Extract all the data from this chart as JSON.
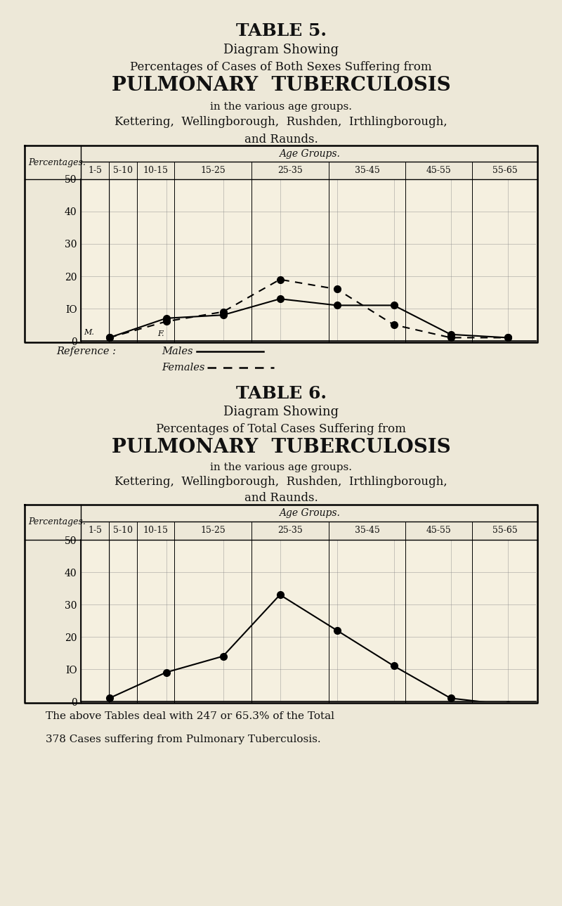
{
  "bg_color": "#ede8d8",
  "chart_bg": "#f5f0e0",
  "text_color": "#111111",
  "table5_lines": [
    [
      "TABLE 5.",
      18,
      true
    ],
    [
      "Diagram Showing",
      13,
      false
    ],
    [
      "Percentages of Cases of Both Sexes Suffering from",
      12,
      false
    ],
    [
      "PULMONARY  TUBERCULOSIS",
      20,
      true
    ],
    [
      "in the various age groups.",
      11,
      false
    ],
    [
      "Kettering,  Wellingborough,  Rushden,  Irthlingborough,",
      12,
      false
    ],
    [
      "and Raunds.",
      12,
      false
    ]
  ],
  "table6_lines": [
    [
      "TABLE 6.",
      18,
      true
    ],
    [
      "Diagram Showing",
      13,
      false
    ],
    [
      "Percentages of Total Cases Suffering from",
      12,
      false
    ],
    [
      "PULMONARY  TUBERCULOSIS",
      20,
      true
    ],
    [
      "in the various age groups.",
      11,
      false
    ],
    [
      "Kettering,  Wellingborough,  Rushden,  Irthlingborough,",
      12,
      false
    ],
    [
      "and Raunds.",
      12,
      false
    ]
  ],
  "age_groups": [
    "1-5",
    "5-10",
    "10-15",
    "15-25",
    "25-35",
    "35-45",
    "45-55",
    "55-65"
  ],
  "x_positions": [
    0,
    1,
    2,
    3,
    4,
    5,
    6,
    7
  ],
  "males_data": [
    1,
    7,
    8,
    13,
    11,
    11,
    2,
    1
  ],
  "females_data": [
    1,
    6,
    9,
    19,
    16,
    5,
    1,
    1
  ],
  "total_data": [
    1,
    9,
    14,
    33,
    22,
    11,
    1,
    -1
  ],
  "ylim_max": 50,
  "yticks": [
    0,
    10,
    20,
    30,
    40,
    50
  ],
  "marker_size": 7,
  "line_width": 1.5,
  "footer_line1": "The above Tables deal with 247 or 65.3% of the Total",
  "footer_line2": "378 Cases suffering from Pulmonary Tuberculosis."
}
